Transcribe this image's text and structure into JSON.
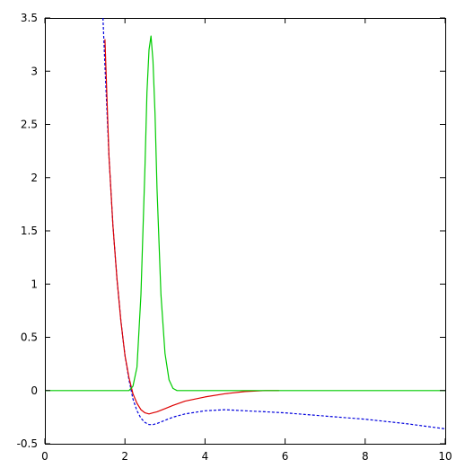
{
  "chart_data": {
    "type": "line",
    "title": "",
    "xlabel": "",
    "ylabel": "",
    "xlim": [
      0,
      10
    ],
    "ylim": [
      -0.5,
      3.5
    ],
    "grid": false,
    "legend": "none",
    "x_ticks": [
      0,
      2,
      4,
      6,
      8,
      10
    ],
    "y_ticks": [
      -0.5,
      0,
      0.5,
      1,
      1.5,
      2,
      2.5,
      3,
      3.5
    ],
    "x_tick_labels": [
      "0",
      "2",
      "4",
      "6",
      "8",
      "10"
    ],
    "y_tick_labels": [
      "-0.5",
      "0",
      "0.5",
      "1",
      "1.5",
      "2",
      "2.5",
      "3",
      "3.5"
    ],
    "series": [
      {
        "color": "#0000dd",
        "dash": "dotted",
        "x": [
          1.45,
          1.5,
          1.6,
          1.7,
          1.8,
          1.9,
          2.0,
          2.1,
          2.2,
          2.3,
          2.4,
          2.5,
          2.6,
          2.7,
          2.8,
          3.0,
          3.2,
          3.5,
          4.0,
          4.5,
          5.0,
          5.5,
          6.0,
          7.0,
          8.0,
          9.0,
          10.0
        ],
        "y": [
          3.5,
          3.05,
          2.2,
          1.55,
          1.05,
          0.65,
          0.33,
          0.1,
          -0.08,
          -0.19,
          -0.26,
          -0.3,
          -0.32,
          -0.32,
          -0.31,
          -0.28,
          -0.25,
          -0.22,
          -0.19,
          -0.18,
          -0.19,
          -0.2,
          -0.21,
          -0.24,
          -0.27,
          -0.31,
          -0.36
        ]
      },
      {
        "color": "#dd0000",
        "dash": "solid",
        "x": [
          1.5,
          1.6,
          1.7,
          1.8,
          1.9,
          2.0,
          2.1,
          2.2,
          2.3,
          2.4,
          2.5,
          2.6,
          2.7,
          2.8,
          3.0,
          3.2,
          3.5,
          4.0,
          4.5,
          5.0,
          5.5,
          5.85
        ],
        "y": [
          3.3,
          2.2,
          1.55,
          1.05,
          0.65,
          0.33,
          0.12,
          -0.03,
          -0.12,
          -0.18,
          -0.21,
          -0.22,
          -0.21,
          -0.2,
          -0.17,
          -0.14,
          -0.1,
          -0.06,
          -0.03,
          -0.01,
          0.0,
          0.0
        ]
      },
      {
        "color": "#00cc00",
        "dash": "solid",
        "x": [
          0.0,
          2.1,
          2.2,
          2.3,
          2.4,
          2.5,
          2.55,
          2.6,
          2.65,
          2.7,
          2.75,
          2.8,
          2.9,
          3.0,
          3.1,
          3.2,
          3.3,
          10.0
        ],
        "y": [
          0.0,
          0.0,
          0.04,
          0.22,
          0.9,
          2.1,
          2.8,
          3.2,
          3.33,
          3.1,
          2.6,
          1.9,
          0.9,
          0.35,
          0.1,
          0.02,
          0.0,
          0.0
        ]
      }
    ]
  }
}
